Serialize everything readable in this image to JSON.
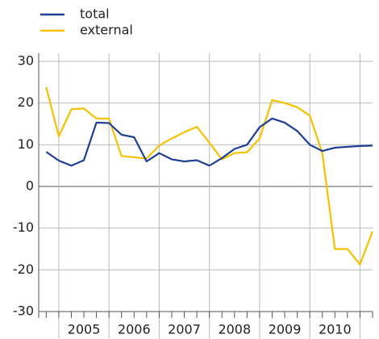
{
  "chart_data": {
    "type": "line",
    "x": [
      2004.75,
      2005,
      2005.25,
      2005.5,
      2005.75,
      2006,
      2006.25,
      2006.5,
      2006.75,
      2007,
      2007.25,
      2007.5,
      2007.75,
      2008,
      2008.25,
      2008.5,
      2008.75,
      2009,
      2009.25,
      2009.5,
      2009.75,
      2010,
      2010.25,
      2010.5,
      2010.75,
      2011,
      2011.25
    ],
    "series": [
      {
        "name": "total",
        "color": "#1f3f94",
        "values": [
          8.3,
          6.2,
          5,
          6.3,
          15.3,
          15.2,
          12.4,
          11.8,
          6,
          8,
          6.5,
          6,
          6.3,
          5,
          6.8,
          9,
          10,
          14.2,
          16.3,
          15.3,
          13.3,
          10,
          8.5,
          9.3,
          9.5,
          9.7,
          9.8
        ]
      },
      {
        "name": "external",
        "color": "#f8c100",
        "values": [
          23.8,
          12,
          18.5,
          18.7,
          16.3,
          16.3,
          7.3,
          7,
          6.7,
          9.8,
          11.5,
          13,
          14.3,
          10.5,
          6.5,
          8,
          8.2,
          11.5,
          20.7,
          20,
          19,
          17,
          8,
          -15,
          -15,
          -18.7,
          -10.8
        ]
      }
    ],
    "xlim": [
      2004.6,
      2011.25
    ],
    "xticks": [
      {
        "value": 2005.5,
        "label": "2005"
      },
      {
        "value": 2006.5,
        "label": "2006"
      },
      {
        "value": 2007.5,
        "label": "2007"
      },
      {
        "value": 2008.5,
        "label": "2008"
      },
      {
        "value": 2009.5,
        "label": "2009"
      },
      {
        "value": 2010.5,
        "label": "2010"
      }
    ],
    "xgrid": [
      2005,
      2006,
      2007,
      2008,
      2009,
      2010,
      2011
    ],
    "ylim": [
      -30,
      30
    ],
    "yticks": [
      -30,
      -20,
      -10,
      0,
      10,
      20,
      30
    ],
    "grid": true,
    "legend": "top-left"
  }
}
